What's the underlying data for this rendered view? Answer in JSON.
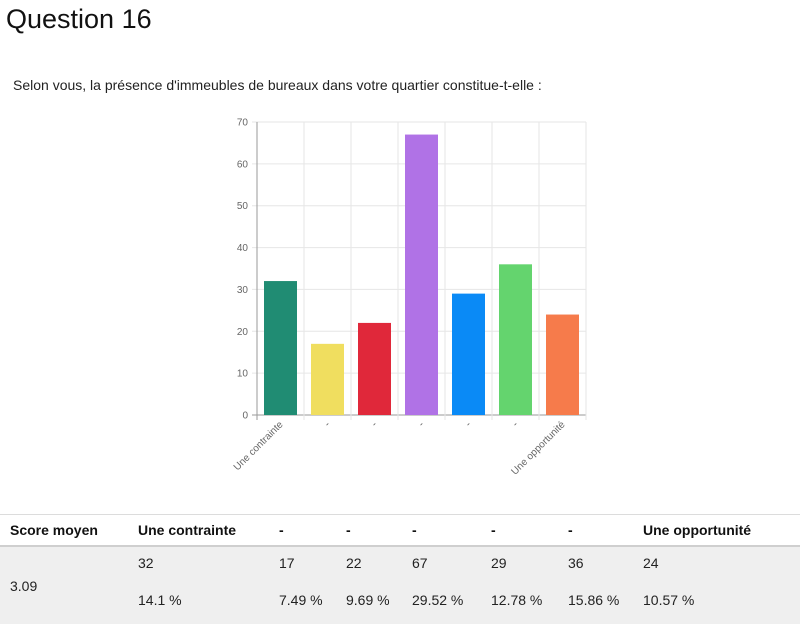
{
  "question": {
    "title": "Question 16",
    "text": "Selon vous, la présence d'immeubles de bureaux dans votre quartier constitue-t-elle :"
  },
  "chart_data": {
    "type": "bar",
    "categories": [
      "Une contrainte",
      "-",
      "-",
      "-",
      "-",
      "-",
      "Une opportunité"
    ],
    "values": [
      32,
      17,
      22,
      67,
      29,
      36,
      24
    ],
    "colors": [
      "#208c73",
      "#f0de5f",
      "#e0283a",
      "#b072e6",
      "#0a8af6",
      "#64d46e",
      "#f67b4b"
    ],
    "ylim": [
      0,
      70
    ],
    "yticks": [
      0,
      10,
      20,
      30,
      40,
      50,
      60,
      70
    ],
    "grid": true
  },
  "table": {
    "score_header": "Score moyen",
    "score_value": "3.09",
    "columns": [
      {
        "label": "Une contrainte",
        "count": "32",
        "percent": "14.1 %"
      },
      {
        "label": "-",
        "count": "17",
        "percent": "7.49 %"
      },
      {
        "label": "-",
        "count": "22",
        "percent": "9.69 %"
      },
      {
        "label": "-",
        "count": "67",
        "percent": "29.52 %"
      },
      {
        "label": "-",
        "count": "29",
        "percent": "12.78 %"
      },
      {
        "label": "-",
        "count": "36",
        "percent": "15.86 %"
      },
      {
        "label": "Une opportunité",
        "count": "24",
        "percent": "10.57 %"
      }
    ]
  }
}
